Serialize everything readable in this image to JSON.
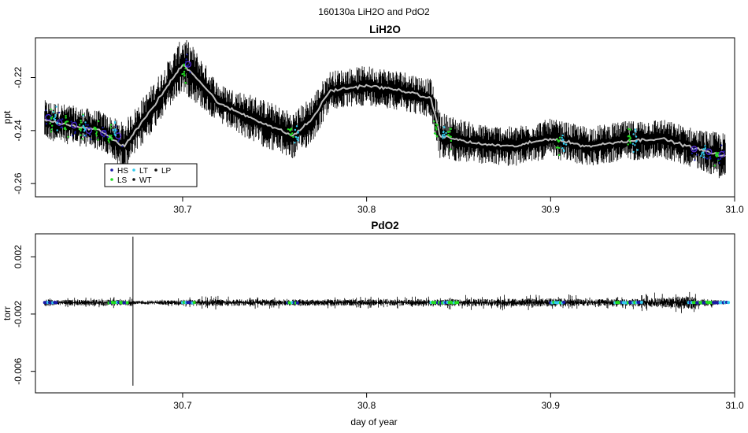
{
  "figure": {
    "title": "160130a   LiH2O and PdO2"
  },
  "chart_data": [
    {
      "type": "line",
      "title": "LiH2O",
      "xlabel": "",
      "ylabel": "ppt",
      "xlim": [
        30.62,
        31.0
      ],
      "ylim": [
        -0.265,
        -0.205
      ],
      "xticks": [
        "30.7",
        "30.8",
        "30.9",
        "31.0"
      ],
      "yticks": [
        "-0.26",
        "-0.24",
        "-0.22"
      ],
      "xtick_values": [
        30.7,
        30.8,
        30.9,
        31.0
      ],
      "ytick_values": [
        -0.26,
        -0.24,
        -0.22
      ],
      "grid": false,
      "legend": {
        "position": "bottom-left",
        "entries": [
          "HS",
          "LT",
          "LP",
          "LS",
          "WT"
        ]
      },
      "colors": {
        "HS": "#1a1aa6",
        "LT": "#33ccee",
        "LP": "#111111",
        "LS": "#22dd22",
        "WT": "#111111",
        "trace": "#000000",
        "smoothed": "#bbbbbb"
      },
      "series": [
        {
          "name": "",
          "style": "raw",
          "x": [
            30.625,
            30.64,
            30.655,
            30.668,
            30.68,
            30.69,
            30.7,
            30.705,
            30.72,
            30.74,
            30.76,
            30.77,
            30.78,
            30.8,
            30.82,
            30.835,
            30.84,
            30.86,
            30.88,
            30.9,
            30.92,
            30.94,
            30.96,
            30.98,
            30.995
          ],
          "values": [
            -0.236,
            -0.238,
            -0.24,
            -0.246,
            -0.235,
            -0.225,
            -0.215,
            -0.218,
            -0.23,
            -0.236,
            -0.242,
            -0.236,
            -0.225,
            -0.223,
            -0.225,
            -0.228,
            -0.242,
            -0.245,
            -0.246,
            -0.243,
            -0.246,
            -0.244,
            -0.243,
            -0.247,
            -0.25
          ],
          "spread": [
            0.005,
            0.005,
            0.005,
            0.006,
            0.006,
            0.006,
            0.007,
            0.007,
            0.005,
            0.006,
            0.006,
            0.006,
            0.005,
            0.005,
            0.005,
            0.005,
            0.006,
            0.005,
            0.005,
            0.005,
            0.005,
            0.005,
            0.005,
            0.005,
            0.006
          ]
        },
        {
          "name": "",
          "style": "smoothed",
          "x": [
            30.625,
            30.64,
            30.655,
            30.668,
            30.68,
            30.69,
            30.7,
            30.705,
            30.72,
            30.74,
            30.76,
            30.77,
            30.78,
            30.8,
            30.82,
            30.835,
            30.84,
            30.86,
            30.88,
            30.9,
            30.92,
            30.94,
            30.96,
            30.98,
            30.995
          ],
          "values": [
            -0.236,
            -0.238,
            -0.24,
            -0.246,
            -0.235,
            -0.225,
            -0.215,
            -0.218,
            -0.23,
            -0.236,
            -0.242,
            -0.236,
            -0.225,
            -0.223,
            -0.225,
            -0.228,
            -0.242,
            -0.245,
            -0.246,
            -0.243,
            -0.246,
            -0.244,
            -0.243,
            -0.247,
            -0.25
          ]
        },
        {
          "name": "HS",
          "style": "circles",
          "x": [
            30.627,
            30.633,
            30.641,
            30.649,
            30.657,
            30.665,
            30.703,
            30.978,
            30.986,
            30.993
          ],
          "values": [
            -0.235,
            -0.237,
            -0.238,
            -0.24,
            -0.241,
            -0.242,
            -0.215,
            -0.247,
            -0.248,
            -0.249
          ]
        },
        {
          "name": "LS",
          "style": "points",
          "x": [
            30.629,
            30.637,
            30.645,
            30.653,
            30.661,
            30.701,
            30.759,
            30.838,
            30.845,
            30.904,
            30.943,
            30.99
          ],
          "values": [
            -0.236,
            -0.238,
            -0.239,
            -0.24,
            -0.242,
            -0.218,
            -0.24,
            -0.24,
            -0.242,
            -0.245,
            -0.243,
            -0.249
          ]
        },
        {
          "name": "LT",
          "style": "points",
          "x": [
            30.631,
            30.647,
            30.663,
            30.762,
            30.842,
            30.907,
            30.946,
            30.983
          ],
          "values": [
            -0.236,
            -0.239,
            -0.241,
            -0.241,
            -0.241,
            -0.245,
            -0.243,
            -0.248
          ]
        }
      ]
    },
    {
      "type": "line",
      "title": "PdO2",
      "xlabel": "day of year",
      "ylabel": "torr",
      "xlim": [
        30.62,
        31.0
      ],
      "ylim": [
        -0.0075,
        0.0036
      ],
      "xticks": [
        "30.7",
        "30.8",
        "30.9",
        "31.0"
      ],
      "yticks": [
        "-0.006",
        "-0.002",
        "0.002"
      ],
      "xtick_values": [
        30.7,
        30.8,
        30.9,
        31.0
      ],
      "ytick_values": [
        -0.006,
        -0.002,
        0.002
      ],
      "grid": false,
      "colors": {
        "trace": "#000000",
        "dots_a": "#1a1aa6",
        "dots_b": "#22dd22",
        "dots_c": "#33ccee"
      },
      "baseline": -0.0012,
      "series": [
        {
          "name": "",
          "style": "raw",
          "x": [
            30.625,
            30.63,
            30.672,
            30.673,
            30.674,
            30.7,
            30.705,
            30.76,
            30.84,
            30.85,
            30.91,
            30.915,
            30.94,
            30.977,
            30.98,
            30.995
          ],
          "values": [
            -0.0012,
            -0.0012,
            -0.0012,
            0.0034,
            -0.007,
            -0.0012,
            -0.0012,
            -0.0012,
            -0.0012,
            -0.0012,
            -0.0012,
            -0.0012,
            -0.0012,
            -0.0012,
            -0.0012,
            -0.0012
          ],
          "spread": [
            0.0004,
            0.0002,
            0.0003,
            0.0,
            0.0,
            0.0002,
            0.0004,
            0.0003,
            0.0003,
            0.0004,
            0.0005,
            0.0004,
            0.0003,
            0.001,
            0.0005,
            0.0001
          ]
        }
      ]
    }
  ]
}
